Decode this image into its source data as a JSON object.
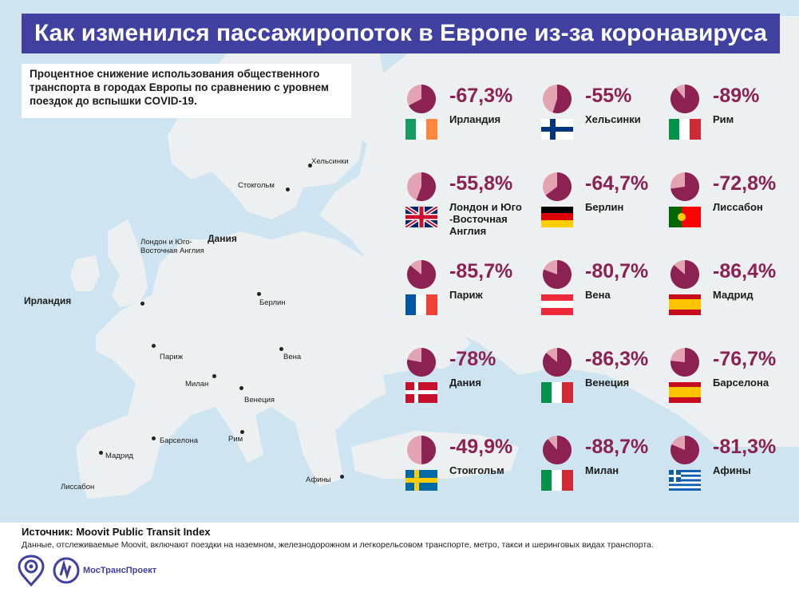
{
  "header": {
    "title": "Как изменился пассажиропоток в Европе из-за коронавируса",
    "subtitle": "Процентное снижение использования общественного транспорта в городах Европы по сравнению с уровнем поездок до вспышки COVID-19."
  },
  "map": {
    "country_labels": [
      "Ирландия",
      "Дания"
    ],
    "city_labels": [
      "Хельсинки",
      "Стокгольм",
      "Лондон и Юго-Восточная Англия",
      "Берлин",
      "Париж",
      "Вена",
      "Милан",
      "Венеция",
      "Барселона",
      "Рим",
      "Мадрид",
      "Лиссабон",
      "Афины"
    ]
  },
  "chart_data": {
    "type": "pie",
    "unit": "%",
    "series": [
      {
        "label": "Ирландия",
        "display": "-67,3%",
        "value": -67.3,
        "flag": "ireland"
      },
      {
        "label": "Хельсинки",
        "display": "-55%",
        "value": -55,
        "flag": "finland"
      },
      {
        "label": "Рим",
        "display": "-89%",
        "value": -89,
        "flag": "italy"
      },
      {
        "label": "Лондон и Юго -Восточная Англия",
        "display": "-55,8%",
        "value": -55.8,
        "flag": "uk"
      },
      {
        "label": "Берлин",
        "display": "-64,7%",
        "value": -64.7,
        "flag": "germany"
      },
      {
        "label": "Лиссабон",
        "display": "-72,8%",
        "value": -72.8,
        "flag": "portugal"
      },
      {
        "label": "Париж",
        "display": "-85,7%",
        "value": -85.7,
        "flag": "france"
      },
      {
        "label": "Вена",
        "display": "-80,7%",
        "value": -80.7,
        "flag": "austria"
      },
      {
        "label": "Мадрид",
        "display": "-86,4%",
        "value": -86.4,
        "flag": "spain"
      },
      {
        "label": "Дания",
        "display": "-78%",
        "value": -78,
        "flag": "denmark"
      },
      {
        "label": "Венеция",
        "display": "-86,3%",
        "value": -86.3,
        "flag": "italy"
      },
      {
        "label": "Барселона",
        "display": "-76,7%",
        "value": -76.7,
        "flag": "spain"
      },
      {
        "label": "Стокгольм",
        "display": "-49,9%",
        "value": -49.9,
        "flag": "sweden"
      },
      {
        "label": "Милан",
        "display": "-88,7%",
        "value": -88.7,
        "flag": "italy"
      },
      {
        "label": "Афины",
        "display": "-81,3%",
        "value": -81.3,
        "flag": "greece"
      }
    ]
  },
  "colors": {
    "title_bg": "#3f40a0",
    "pie_drop": "#8b2252",
    "pie_rest": "#e3a3b3",
    "sea": "#cfe4f1",
    "land": "#edf0f1"
  },
  "footer": {
    "source": "Источник: Moovit Public Transit Index",
    "note": "Данные, отслеживаемые Moovit, включают поездки на наземном, железнодорожном и легкорельсовом транспорте, метро, такси и шеринговых видах транспорта.",
    "logo_text": "МосТрансПроект"
  }
}
